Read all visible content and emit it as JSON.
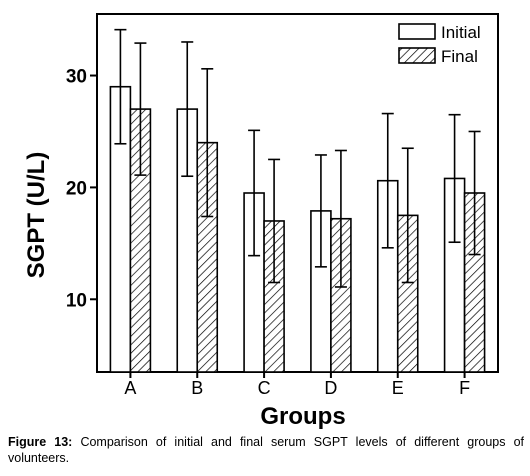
{
  "chart_data": {
    "type": "bar",
    "title": "",
    "xlabel": "Groups",
    "ylabel": "SGPT (U/L)",
    "ylim": [
      3.5,
      35.5
    ],
    "yticks": [
      10,
      20,
      30
    ],
    "ytick_labels": [
      "10",
      "20",
      "30"
    ],
    "categories": [
      "A",
      "B",
      "C",
      "D",
      "E",
      "F"
    ],
    "series": [
      {
        "name": "Initial",
        "values": [
          29.0,
          27.0,
          19.5,
          17.9,
          20.6,
          20.8
        ],
        "errors": [
          5.1,
          6.0,
          5.6,
          5.0,
          6.0,
          5.7
        ],
        "pattern": "open"
      },
      {
        "name": "Final",
        "values": [
          27.0,
          24.0,
          17.0,
          17.2,
          17.5,
          19.5
        ],
        "errors": [
          5.9,
          6.6,
          5.5,
          6.1,
          6.0,
          5.5
        ],
        "pattern": "hatched"
      }
    ],
    "legend_position": "top-right",
    "grid": false
  },
  "caption": {
    "label": "Figure 13:",
    "text": " Comparison of initial and final serum SGPT levels of different groups of volunteers."
  }
}
